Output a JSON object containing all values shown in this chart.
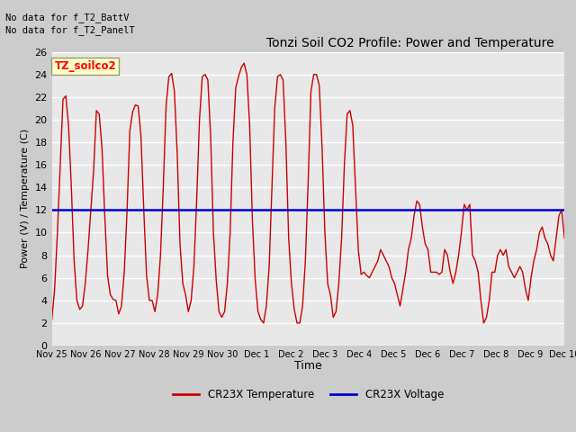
{
  "title": "Tonzi Soil CO2 Profile: Power and Temperature",
  "ylabel": "Power (V) / Temperature (C)",
  "xlabel": "Time",
  "ylim": [
    0,
    26
  ],
  "yticks": [
    0,
    2,
    4,
    6,
    8,
    10,
    12,
    14,
    16,
    18,
    20,
    22,
    24,
    26
  ],
  "voltage_value": 12.0,
  "voltage_color": "#0000cc",
  "temp_color": "#cc0000",
  "fig_bg": "#cccccc",
  "plot_bg": "#e8e8e8",
  "grid_color": "#ffffff",
  "no_data_text1": "No data for f_T2_BattV",
  "no_data_text2": "No data for f_T2_PanelT",
  "legend_label_text": "TZ_soilco2",
  "legend1": "CR23X Temperature",
  "legend2": "CR23X Voltage",
  "xtick_labels": [
    "Nov 25",
    "Nov 26",
    "Nov 27",
    "Nov 28",
    "Nov 29",
    "Nov 30",
    "Dec 1",
    "Dec 2",
    "Dec 3",
    "Dec 4",
    "Dec 5",
    "Dec 6",
    "Dec 7",
    "Dec 8",
    "Dec 9",
    "Dec 10"
  ],
  "temp_data": [
    2.3,
    5.0,
    10.0,
    16.0,
    21.8,
    22.1,
    19.5,
    14.0,
    7.5,
    4.0,
    3.2,
    3.5,
    5.5,
    8.5,
    12.0,
    15.5,
    20.8,
    20.5,
    17.5,
    11.5,
    6.2,
    4.5,
    4.1,
    4.0,
    2.8,
    3.5,
    6.5,
    12.0,
    19.0,
    20.7,
    21.3,
    21.2,
    18.5,
    12.0,
    6.2,
    4.0,
    4.0,
    3.0,
    4.5,
    8.0,
    14.0,
    21.2,
    23.8,
    24.1,
    22.5,
    17.0,
    9.0,
    5.5,
    4.5,
    3.0,
    4.0,
    7.0,
    13.0,
    20.0,
    23.8,
    24.0,
    23.5,
    18.5,
    10.0,
    5.8,
    3.0,
    2.5,
    3.0,
    5.5,
    10.0,
    18.0,
    22.8,
    23.8,
    24.6,
    25.0,
    24.0,
    19.5,
    11.0,
    5.8,
    3.0,
    2.3,
    2.0,
    3.5,
    7.0,
    14.0,
    21.0,
    23.8,
    24.0,
    23.5,
    18.0,
    9.5,
    5.5,
    3.2,
    2.0,
    2.0,
    3.5,
    7.5,
    14.5,
    22.5,
    24.0,
    24.0,
    23.0,
    17.5,
    10.0,
    5.5,
    4.5,
    2.5,
    3.0,
    5.5,
    9.5,
    16.0,
    20.5,
    20.8,
    19.5,
    14.0,
    8.5,
    6.3,
    6.5,
    6.2,
    6.0,
    6.5,
    7.0,
    7.5,
    8.5,
    8.0,
    7.5,
    7.0,
    6.0,
    5.5,
    4.5,
    3.5,
    5.0,
    6.5,
    8.5,
    9.5,
    11.5,
    12.8,
    12.5,
    10.5,
    9.0,
    8.5,
    6.5,
    6.5,
    6.5,
    6.3,
    6.5,
    8.5,
    8.0,
    6.5,
    5.5,
    6.5,
    8.0,
    10.0,
    12.5,
    12.0,
    12.5,
    8.0,
    7.5,
    6.5,
    4.0,
    2.0,
    2.5,
    4.0,
    6.5,
    6.5,
    8.0,
    8.5,
    8.0,
    8.5,
    7.0,
    6.5,
    6.0,
    6.5,
    7.0,
    6.5,
    5.0,
    4.0,
    6.0,
    7.5,
    8.5,
    10.0,
    10.5,
    9.5,
    9.0,
    8.0,
    7.5,
    9.5,
    11.5,
    12.0,
    9.5
  ]
}
